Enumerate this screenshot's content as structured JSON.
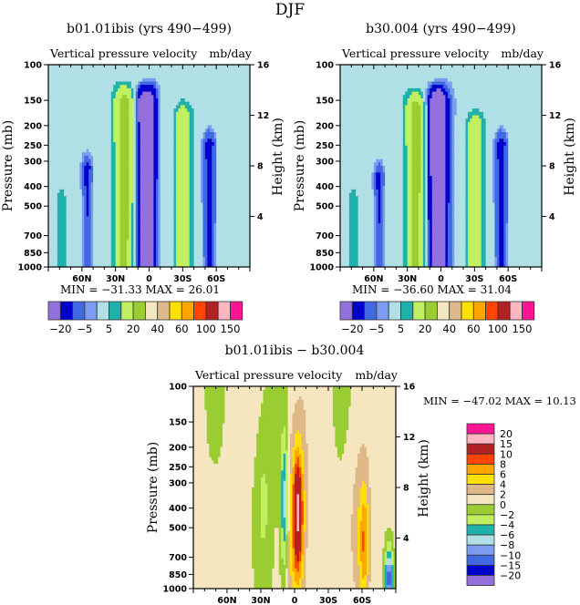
{
  "figure": {
    "title": "DJF"
  },
  "panels": [
    {
      "id": "panel-1",
      "title": "b01.01ibis (yrs 490−499)",
      "left_string": "Vertical pressure velocity",
      "right_string": "mb/day",
      "stats": "MIN = −31.33   MAX =  26.01",
      "field": "set1"
    },
    {
      "id": "panel-2",
      "title": "b30.004 (yrs 490−499)",
      "left_string": "Vertical pressure velocity",
      "right_string": "mb/day",
      "stats": "MIN = −36.60   MAX =  31.04",
      "field": "set2"
    },
    {
      "id": "panel-diff",
      "title": "b01.01ibis − b30.004",
      "left_string": "Vertical pressure velocity",
      "right_string": "mb/day",
      "stats": "MIN = −47.02   MAX =  10.13",
      "field": "diff"
    }
  ],
  "chart_data": [
    {
      "type": "heatmap",
      "title": "b01.01ibis (yrs 490−499)",
      "subtitle_left": "Vertical pressure velocity",
      "subtitle_right": "mb/day",
      "xlabel": "",
      "ylabel": "Pressure (mb)",
      "ylabel_right": "Height (km)",
      "x_ticks": [
        "60N",
        "30N",
        "0",
        "30S",
        "60S"
      ],
      "x_tick_values": [
        60,
        30,
        0,
        -30,
        -60
      ],
      "xlim": [
        90,
        -90
      ],
      "y_ticks": [
        100,
        150,
        200,
        250,
        300,
        400,
        500,
        700,
        850,
        1000
      ],
      "ylim": [
        1000,
        100
      ],
      "y_scale": "log",
      "y_right_ticks": [
        4,
        8,
        12,
        16
      ],
      "min": -31.33,
      "max": 26.01,
      "levels": [
        -20,
        -10,
        -5,
        -2,
        5,
        10,
        20,
        30,
        40,
        50,
        60,
        80,
        100,
        120,
        150
      ],
      "level_labels": [
        "−20",
        "−5",
        "5",
        "20",
        "40",
        "60",
        "100",
        "150"
      ],
      "colors": [
        "#9370DB",
        "#0000CD",
        "#4169E1",
        "#7B9CF0",
        "#B0E0E6",
        "#20B2AA",
        "#C0F060",
        "#9ACD32",
        "#F5E6C0",
        "#DEB887",
        "#FFE000",
        "#FFA500",
        "#FF4500",
        "#B22222",
        "#FFB6C1",
        "#FF1493"
      ],
      "features": [
        {
          "desc": "subsidence (positive) band",
          "lat_center": 25,
          "p_top": 150,
          "value_max": 20
        },
        {
          "desc": "ascent (negative) ITCZ core",
          "lat_center": 0,
          "p_top": 150,
          "value_min": -30
        },
        {
          "desc": "subsidence band",
          "lat_center": -30,
          "p_top": 180,
          "value_max": 10
        },
        {
          "desc": "ascent storm track",
          "lat_center": -55,
          "p_top": 250,
          "value_min": -10
        },
        {
          "desc": "ascent storm track",
          "lat_center": 55,
          "p_top": 320,
          "value_min": -10
        }
      ]
    },
    {
      "type": "heatmap",
      "title": "b30.004 (yrs 490−499)",
      "subtitle_left": "Vertical pressure velocity",
      "subtitle_right": "mb/day",
      "ylabel": "Pressure (mb)",
      "ylabel_right": "Height (km)",
      "x_ticks": [
        "60N",
        "30N",
        "0",
        "30S",
        "60S"
      ],
      "x_tick_values": [
        60,
        30,
        0,
        -30,
        -60
      ],
      "xlim": [
        90,
        -90
      ],
      "y_ticks": [
        100,
        150,
        200,
        250,
        300,
        400,
        500,
        700,
        850,
        1000
      ],
      "ylim": [
        1000,
        100
      ],
      "y_scale": "log",
      "y_right_ticks": [
        4,
        8,
        12,
        16
      ],
      "min": -36.6,
      "max": 31.04,
      "levels": [
        -20,
        -10,
        -5,
        -2,
        5,
        10,
        20,
        30,
        40,
        50,
        60,
        80,
        100,
        120,
        150
      ],
      "level_labels": [
        "−20",
        "−5",
        "5",
        "20",
        "40",
        "60",
        "100",
        "150"
      ],
      "colors": [
        "#9370DB",
        "#0000CD",
        "#4169E1",
        "#7B9CF0",
        "#B0E0E6",
        "#20B2AA",
        "#C0F060",
        "#9ACD32",
        "#F5E6C0",
        "#DEB887",
        "#FFE000",
        "#FFA500",
        "#FF4500",
        "#B22222",
        "#FFB6C1",
        "#FF1493"
      ],
      "features": [
        {
          "desc": "subsidence band",
          "lat_center": 25,
          "p_top": 150,
          "value_max": 20
        },
        {
          "desc": "ascent ITCZ core",
          "lat_center": 3,
          "p_top": 150,
          "value_min": -35
        },
        {
          "desc": "subsidence band",
          "lat_center": -30,
          "p_top": 190,
          "value_max": 10
        },
        {
          "desc": "ascent storm track",
          "lat_center": -55,
          "p_top": 240,
          "value_min": -10
        },
        {
          "desc": "ascent storm track",
          "lat_center": 55,
          "p_top": 350,
          "value_min": -10
        }
      ]
    },
    {
      "type": "heatmap",
      "title": "b01.01ibis − b30.004",
      "subtitle_left": "Vertical pressure velocity",
      "subtitle_right": "mb/day",
      "ylabel": "Pressure (mb)",
      "ylabel_right": "Height (km)",
      "x_ticks": [
        "60N",
        "30N",
        "0",
        "30S",
        "60S"
      ],
      "x_tick_values": [
        60,
        30,
        0,
        -30,
        -60
      ],
      "xlim": [
        90,
        -90
      ],
      "y_ticks": [
        100,
        150,
        200,
        250,
        300,
        400,
        500,
        700,
        850,
        1000
      ],
      "ylim": [
        1000,
        100
      ],
      "y_scale": "log",
      "y_right_ticks": [
        4,
        8,
        12,
        16
      ],
      "min": -47.02,
      "max": 10.13,
      "levels": [
        -20,
        -15,
        -10,
        -8,
        -6,
        -4,
        -2,
        0,
        2,
        4,
        6,
        8,
        10,
        15,
        20
      ],
      "level_labels": [
        "20",
        "15",
        "10",
        "8",
        "6",
        "4",
        "2",
        "0",
        "−2",
        "−4",
        "−6",
        "−8",
        "−10",
        "−15",
        "−20"
      ],
      "colors": [
        "#9370DB",
        "#0000CD",
        "#4169E1",
        "#7B9CF0",
        "#B0E0E6",
        "#20B2AA",
        "#C0F060",
        "#9ACD32",
        "#F5E6C0",
        "#DEB887",
        "#FFE000",
        "#FFA500",
        "#FF4500",
        "#B22222",
        "#FFB6C1",
        "#FF1493"
      ],
      "legend_placement": "right",
      "features": [
        {
          "desc": "positive anomaly core",
          "lat_center": -3,
          "p_center": 400,
          "value_max": 10
        },
        {
          "desc": "negative anomaly",
          "lat_center": 8,
          "p_center": 350,
          "value_min": -8
        },
        {
          "desc": "positive anomaly",
          "lat_center": -62,
          "p_center": 600,
          "value_max": 6
        }
      ]
    }
  ]
}
